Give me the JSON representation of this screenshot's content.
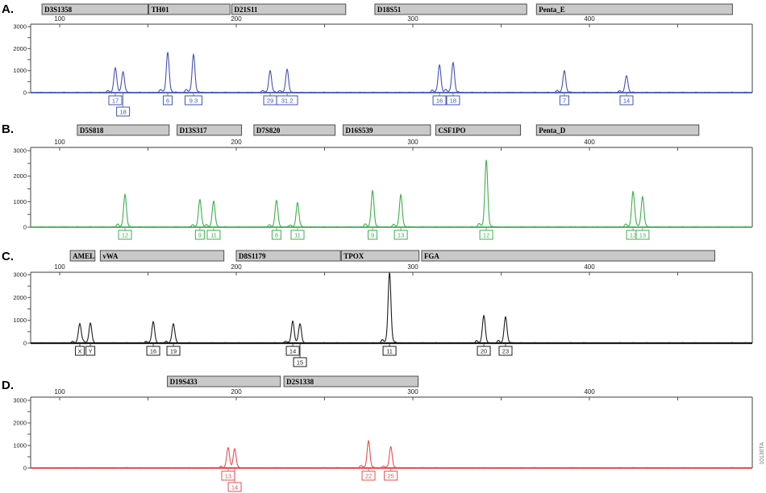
{
  "figure_id": "10130TA",
  "chart_data": [
    {
      "panel": "A.",
      "type": "line",
      "dye": "blue",
      "color": "#4353b4",
      "xlim": [
        83,
        493
      ],
      "ylim": [
        0,
        3000
      ],
      "x_tick_labels": [
        "100",
        "200",
        "300",
        "400"
      ],
      "y_tick_labels": [
        "3000",
        "2000",
        "1000",
        "0"
      ],
      "markers": [
        {
          "name": "D3S1358",
          "start_bp": 90,
          "end_bp": 150
        },
        {
          "name": "TH01",
          "start_bp": 150.5,
          "end_bp": 196.5
        },
        {
          "name": "D21S11",
          "start_bp": 197.5,
          "end_bp": 262
        },
        {
          "name": "D18S51",
          "start_bp": 278.5,
          "end_bp": 364.5
        },
        {
          "name": "Penta_E",
          "start_bp": 370,
          "end_bp": 481
        }
      ],
      "peaks": [
        {
          "marker": "D3S1358",
          "allele": "17",
          "size_bp": 131.5,
          "height_rfu": 1000,
          "label_row": 1
        },
        {
          "marker": "D3S1358",
          "allele": "18",
          "size_bp": 135.9,
          "height_rfu": 900,
          "label_row": 2
        },
        {
          "marker": "TH01",
          "allele": "6",
          "size_bp": 161.2,
          "height_rfu": 1750,
          "label_row": 1
        },
        {
          "marker": "TH01",
          "allele": "9.3",
          "size_bp": 175.8,
          "height_rfu": 1650,
          "label_row": 1
        },
        {
          "marker": "D21S11",
          "allele": "29",
          "size_bp": 219.2,
          "height_rfu": 950,
          "label_row": 1
        },
        {
          "marker": "D21S11",
          "allele": "31.2",
          "size_bp": 228.8,
          "height_rfu": 1000,
          "label_row": 1
        },
        {
          "marker": "D18S51",
          "allele": "16",
          "size_bp": 315.1,
          "height_rfu": 1200,
          "label_row": 1
        },
        {
          "marker": "D18S51",
          "allele": "18",
          "size_bp": 322.8,
          "height_rfu": 1300,
          "label_row": 1
        },
        {
          "marker": "Penta_E",
          "allele": "7",
          "size_bp": 385.8,
          "height_rfu": 950,
          "label_row": 1
        },
        {
          "marker": "Penta_E",
          "allele": "14",
          "size_bp": 421.0,
          "height_rfu": 730,
          "label_row": 1
        }
      ]
    },
    {
      "panel": "B.",
      "type": "line",
      "dye": "green",
      "color": "#3fae4c",
      "xlim": [
        83,
        493
      ],
      "ylim": [
        0,
        3000
      ],
      "x_tick_labels": [
        "100",
        "200",
        "300",
        "400"
      ],
      "y_tick_labels": [
        "3000",
        "2000",
        "1000",
        "0"
      ],
      "markers": [
        {
          "name": "D5S818",
          "start_bp": 110,
          "end_bp": 162
        },
        {
          "name": "D13S317",
          "start_bp": 166.5,
          "end_bp": 203
        },
        {
          "name": "D7S820",
          "start_bp": 210,
          "end_bp": 256
        },
        {
          "name": "D16S539",
          "start_bp": 260.5,
          "end_bp": 310
        },
        {
          "name": "CSF1PO",
          "start_bp": 313,
          "end_bp": 361
        },
        {
          "name": "Penta_D",
          "start_bp": 370,
          "end_bp": 462
        }
      ],
      "peaks": [
        {
          "marker": "D5S818",
          "allele": "12",
          "size_bp": 137.0,
          "height_rfu": 1220,
          "label_row": 1
        },
        {
          "marker": "D13S317",
          "allele": "9",
          "size_bp": 179.4,
          "height_rfu": 1030,
          "label_row": 1
        },
        {
          "marker": "D13S317",
          "allele": "11",
          "size_bp": 187.2,
          "height_rfu": 970,
          "label_row": 1
        },
        {
          "marker": "D7S820",
          "allele": "8",
          "size_bp": 222.8,
          "height_rfu": 1000,
          "label_row": 1
        },
        {
          "marker": "D7S820",
          "allele": "11",
          "size_bp": 234.7,
          "height_rfu": 900,
          "label_row": 1
        },
        {
          "marker": "D16S539",
          "allele": "9",
          "size_bp": 277.2,
          "height_rfu": 1350,
          "label_row": 1
        },
        {
          "marker": "D16S539",
          "allele": "13",
          "size_bp": 293.2,
          "height_rfu": 1200,
          "label_row": 1
        },
        {
          "marker": "CSF1PO",
          "allele": "12",
          "size_bp": 341.6,
          "height_rfu": 2500,
          "label_row": 1
        },
        {
          "marker": "Penta_D",
          "allele": "12",
          "size_bp": 424.7,
          "height_rfu": 1300,
          "label_row": 1
        },
        {
          "marker": "Penta_D",
          "allele": "13",
          "size_bp": 430.1,
          "height_rfu": 1130,
          "label_row": 1
        }
      ]
    },
    {
      "panel": "C.",
      "type": "line",
      "dye": "black",
      "color": "#1c1c1c",
      "xlim": [
        83,
        493
      ],
      "ylim": [
        0,
        3000
      ],
      "x_tick_labels": [
        "100",
        "200",
        "300",
        "400"
      ],
      "y_tick_labels": [
        "3000",
        "2000",
        "1000",
        "0"
      ],
      "markers": [
        {
          "name": "AMEL",
          "start_bp": 106,
          "end_bp": 120
        },
        {
          "name": "vWA",
          "start_bp": 123,
          "end_bp": 193
        },
        {
          "name": "D8S1179",
          "start_bp": 200,
          "end_bp": 259
        },
        {
          "name": "TPOX",
          "start_bp": 259.5,
          "end_bp": 303.5
        },
        {
          "name": "FGA",
          "start_bp": 305,
          "end_bp": 471
        }
      ],
      "peaks": [
        {
          "marker": "AMEL",
          "allele": "X",
          "size_bp": 111.4,
          "height_rfu": 820,
          "label_row": 1
        },
        {
          "marker": "AMEL",
          "allele": "Y",
          "size_bp": 117.4,
          "height_rfu": 820,
          "label_row": 1
        },
        {
          "marker": "vWA",
          "allele": "16",
          "size_bp": 153.0,
          "height_rfu": 880,
          "label_row": 1
        },
        {
          "marker": "vWA",
          "allele": "19",
          "size_bp": 164.4,
          "height_rfu": 810,
          "label_row": 1
        },
        {
          "marker": "D8S1179",
          "allele": "14",
          "size_bp": 232.0,
          "height_rfu": 850,
          "label_row": 1
        },
        {
          "marker": "D8S1179",
          "allele": "15",
          "size_bp": 236.1,
          "height_rfu": 800,
          "label_row": 2
        },
        {
          "marker": "TPOX",
          "allele": "11",
          "size_bp": 286.8,
          "height_rfu": 2950,
          "label_row": 1
        },
        {
          "marker": "FGA",
          "allele": "20",
          "size_bp": 340.2,
          "height_rfu": 1150,
          "label_row": 1
        },
        {
          "marker": "FGA",
          "allele": "23",
          "size_bp": 352.5,
          "height_rfu": 1100,
          "label_row": 1
        }
      ]
    },
    {
      "panel": "D.",
      "type": "line",
      "dye": "red",
      "color": "#e65050",
      "xlim": [
        83,
        493
      ],
      "ylim": [
        0,
        3000
      ],
      "x_tick_labels": [
        "100",
        "200",
        "300",
        "400"
      ],
      "y_tick_labels": [
        "3000",
        "2000",
        "1000",
        "0"
      ],
      "markers": [
        {
          "name": "D19S433",
          "start_bp": 161,
          "end_bp": 225
        },
        {
          "name": "D2S1338",
          "start_bp": 227,
          "end_bp": 303
        }
      ],
      "peaks": [
        {
          "marker": "D19S433",
          "allele": "13",
          "size_bp": 195.4,
          "height_rfu": 800,
          "label_row": 1
        },
        {
          "marker": "D19S433",
          "allele": "14",
          "size_bp": 199.1,
          "height_rfu": 800,
          "label_row": 2
        },
        {
          "marker": "D2S1338",
          "allele": "22",
          "size_bp": 274.9,
          "height_rfu": 1150,
          "label_row": 1
        },
        {
          "marker": "D2S1338",
          "allele": "25",
          "size_bp": 287.5,
          "height_rfu": 900,
          "label_row": 1
        }
      ]
    }
  ]
}
